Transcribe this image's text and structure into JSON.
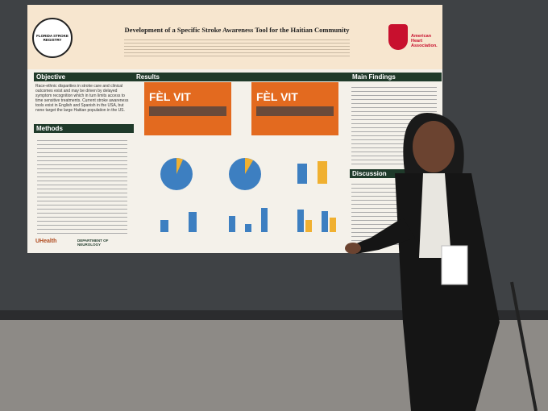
{
  "poster": {
    "title": "Development of a Specific Stroke Awareness Tool for the Haitian Community",
    "left_logo": "FLORIDA STROKE REGISTRY",
    "right_logo": "American Heart Association.",
    "sections": {
      "objective": {
        "heading": "Objective",
        "text": "Race-ethnic disparities in stroke care and clinical outcomes exist and may be driven by delayed symptom recognition which in turn limits access to time sensitive treatments. Current stroke awareness tools exist in English and Spanish in the USA, but none target the large Haitian population in the US."
      },
      "methods": {
        "heading": "Methods"
      },
      "results": {
        "heading": "Results",
        "tool_name": "FÈL VIT"
      },
      "main_findings": {
        "heading": "Main Findings"
      },
      "discussion": {
        "heading": "Discussion"
      }
    },
    "footer_logos": [
      "UHealth",
      "DEPARTMENT OF NEUROLOGY"
    ]
  }
}
